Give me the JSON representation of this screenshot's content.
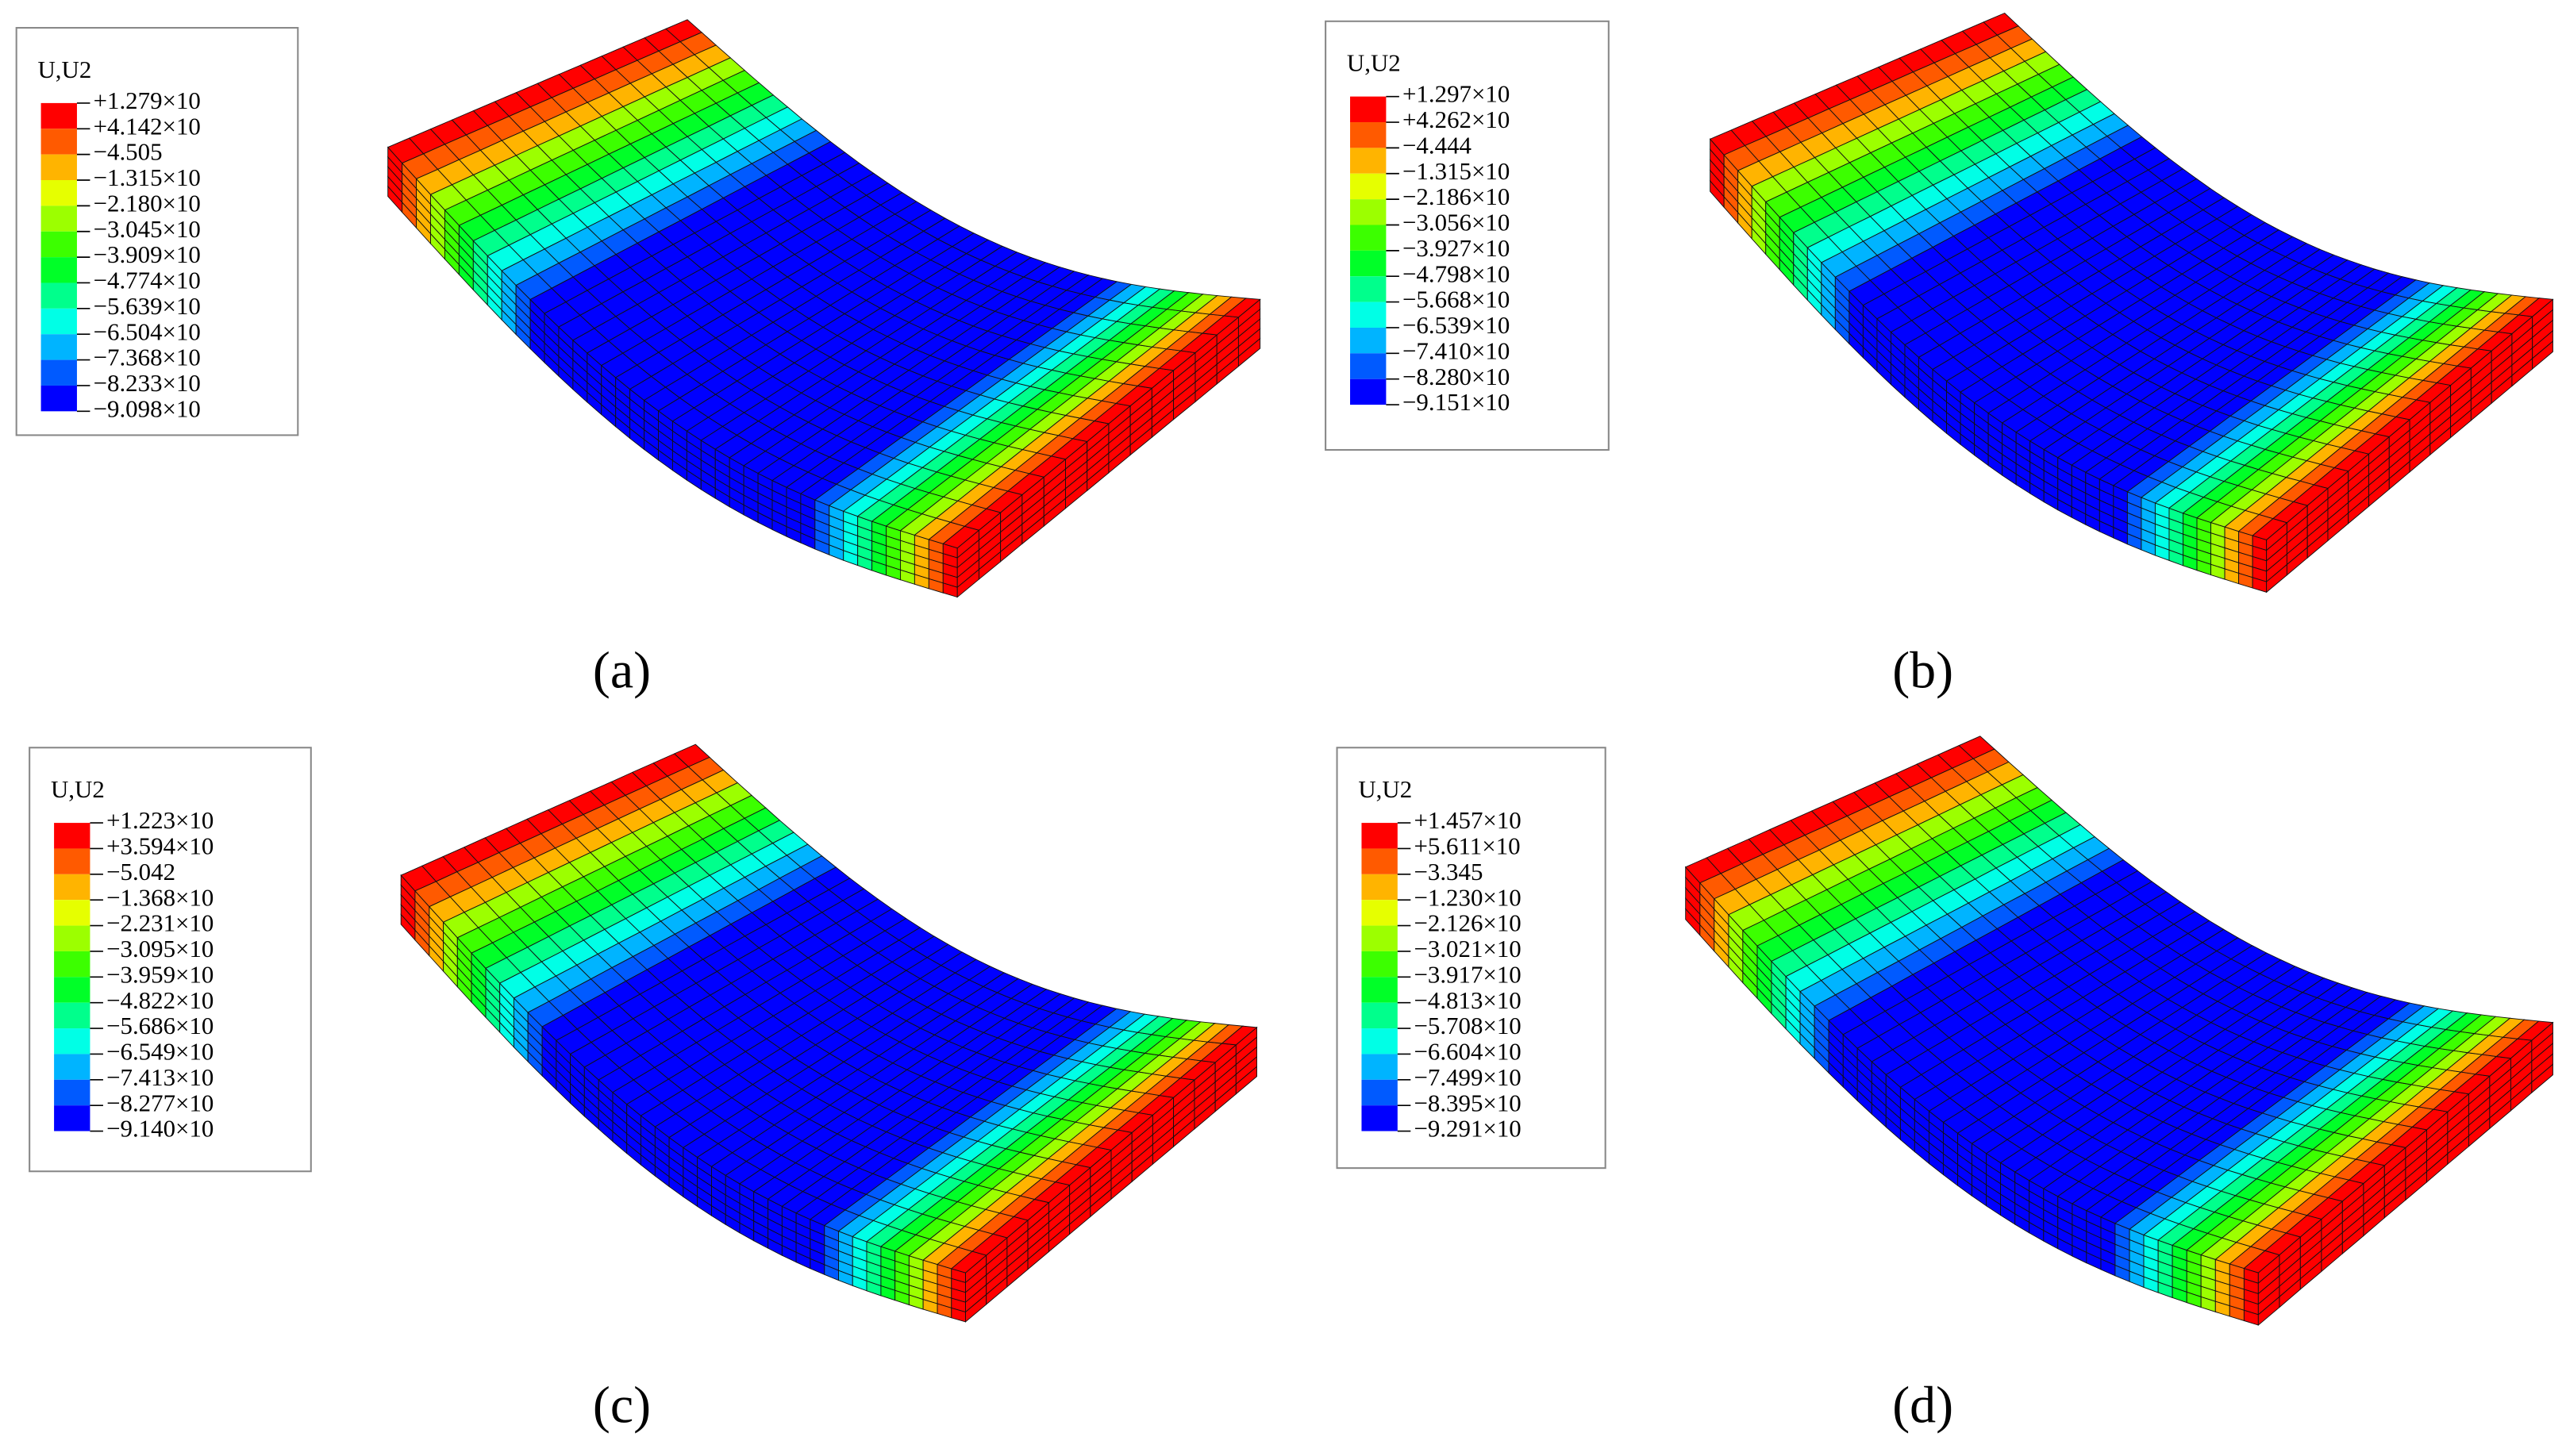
{
  "panels": [
    {
      "legend": {
        "title": "U,U2",
        "labels": [
          "+1.279×10",
          "+4.142×10",
          "−4.505",
          "−1.315×10",
          "−2.180×10",
          "−3.045×10",
          "−3.909×10",
          "−4.774×10",
          "−5.639×10",
          "−6.504×10",
          "−7.368×10",
          "−8.233×10",
          "−9.098×10"
        ]
      },
      "caption": "(a)"
    },
    {
      "legend": {
        "title": "U,U2",
        "labels": [
          "+1.297×10",
          "+4.262×10",
          "−4.444",
          "−1.315×10",
          "−2.186×10",
          "−3.056×10",
          "−3.927×10",
          "−4.798×10",
          "−5.668×10",
          "−6.539×10",
          "−7.410×10",
          "−8.280×10",
          "−9.151×10"
        ]
      },
      "caption": "(b)"
    },
    {
      "legend": {
        "title": "U,U2",
        "labels": [
          "+1.223×10",
          "+3.594×10",
          "−5.042",
          "−1.368×10",
          "−2.231×10",
          "−3.095×10",
          "−3.959×10",
          "−4.822×10",
          "−5.686×10",
          "−6.549×10",
          "−7.413×10",
          "−8.277×10",
          "−9.140×10"
        ]
      },
      "caption": "(c)"
    },
    {
      "legend": {
        "title": "U,U2",
        "labels": [
          "+1.457×10",
          "+5.611×10",
          "−3.345",
          "−1.230×10",
          "−2.126×10",
          "−3.021×10",
          "−3.917×10",
          "−4.813×10",
          "−5.708×10",
          "−6.604×10",
          "−7.499×10",
          "−8.395×10",
          "−9.291×10"
        ]
      },
      "caption": "(d)"
    }
  ]
}
